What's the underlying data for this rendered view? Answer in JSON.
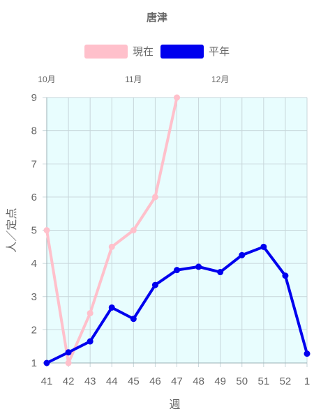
{
  "chart_data": {
    "type": "line",
    "title": "唐津",
    "xlabel": "週",
    "ylabel": "人／定点",
    "categories": [
      "41",
      "42",
      "43",
      "44",
      "45",
      "46",
      "47",
      "48",
      "49",
      "50",
      "51",
      "52",
      "1"
    ],
    "top_axis_labels": [
      "10月",
      "11月",
      "12月"
    ],
    "ylim": [
      1,
      9
    ],
    "yticks": [
      1,
      2,
      3,
      4,
      5,
      6,
      7,
      8,
      9
    ],
    "grid": true,
    "legend_position": "top",
    "plot_background": "#e8fdfe",
    "series": [
      {
        "name": "現在",
        "color": "#ffc0cb",
        "values": [
          5,
          1,
          2.5,
          4.5,
          5,
          6,
          9,
          null,
          null,
          null,
          null,
          null,
          null
        ]
      },
      {
        "name": "平年",
        "color": "#0000ee",
        "values": [
          1,
          1.32,
          1.65,
          2.67,
          2.33,
          3.35,
          3.8,
          3.9,
          3.74,
          4.25,
          4.5,
          3.63,
          1.28
        ]
      }
    ]
  }
}
